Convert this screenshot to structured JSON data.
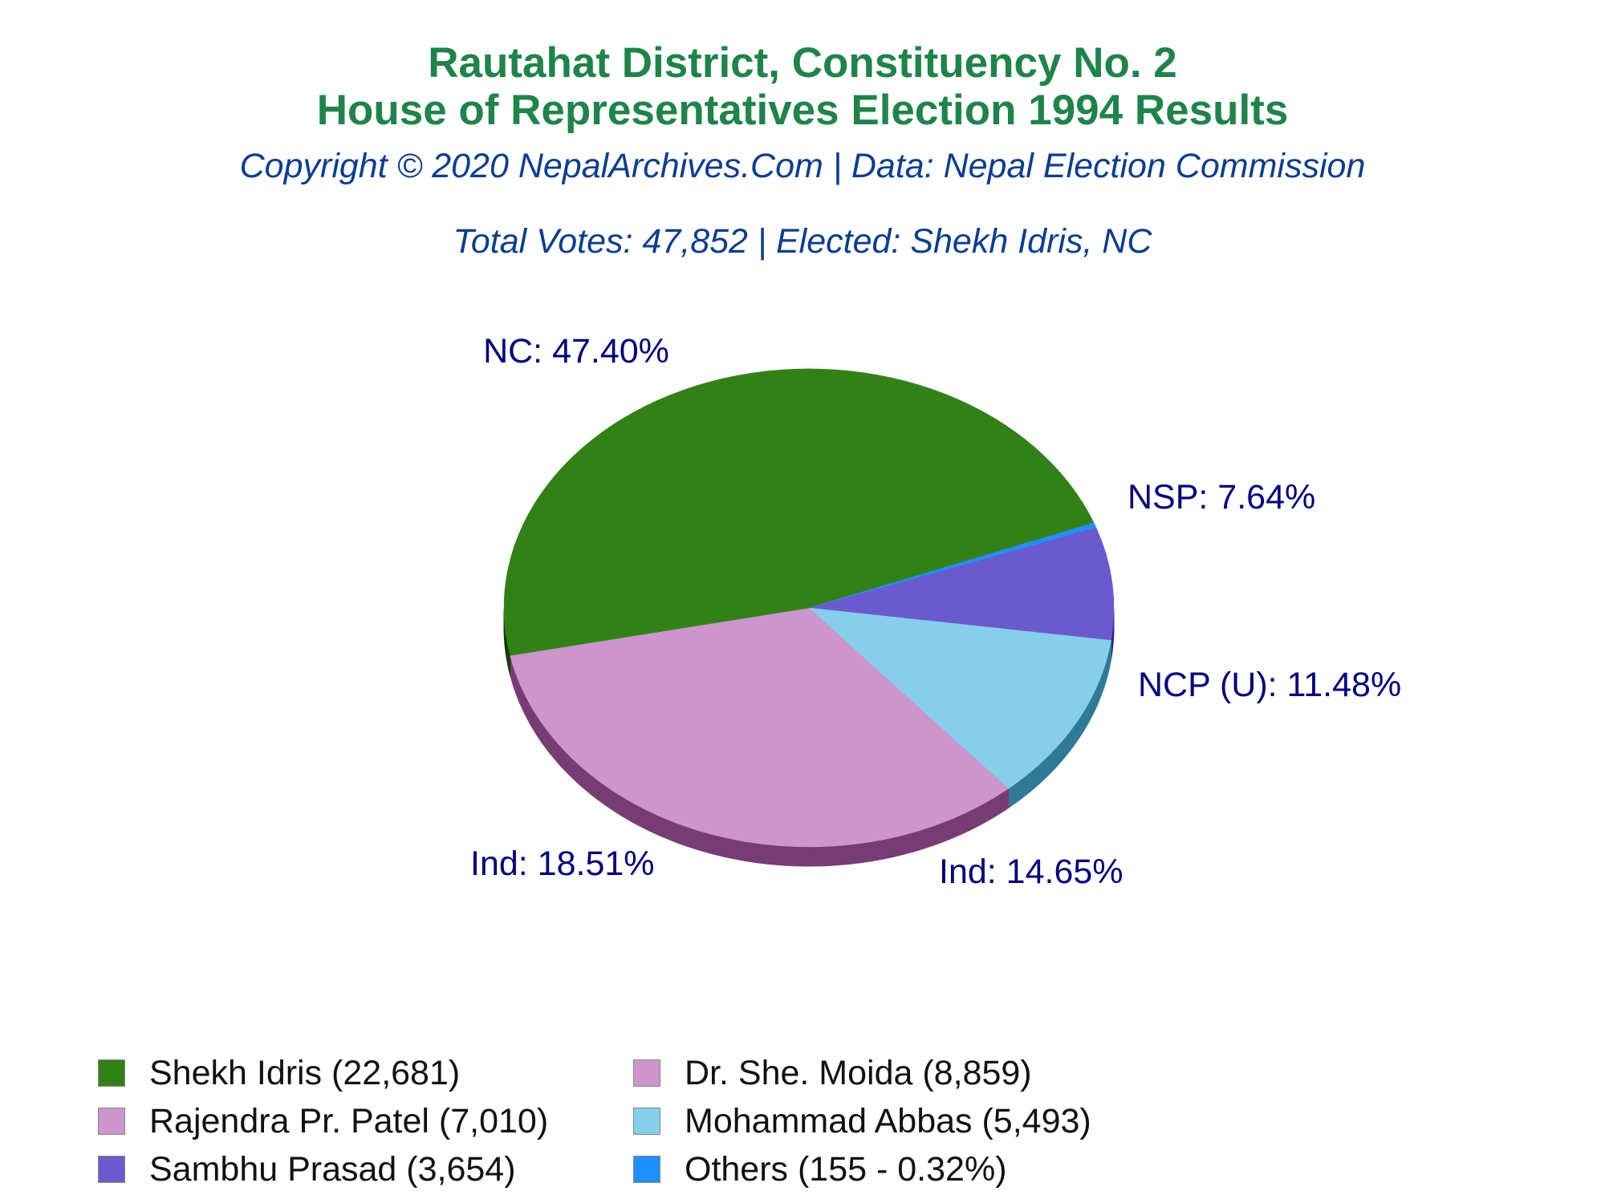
{
  "header": {
    "title_line1": "Rautahat District, Constituency No. 2",
    "title_line2": "House of Representatives Election 1994 Results",
    "copyright": "Copyright © 2020 NepalArchives.Com | Data: Nepal Election Commission",
    "summary": "Total Votes: 47,852 | Elected: Shekh Idris, NC"
  },
  "chart_data": {
    "type": "pie",
    "title": "Rautahat District, Constituency No. 2 House of Representatives Election 1994 Results",
    "total_votes": 47852,
    "slices": [
      {
        "candidate": "Shekh Idris",
        "party_label": "NC: 47.40%",
        "votes": 22681,
        "percent": 47.4,
        "color": "#328117",
        "side_color": "#143c05"
      },
      {
        "candidate": "Dr. She. Moida",
        "party_label": "Ind: 18.51%",
        "votes": 8859,
        "percent": 18.51,
        "color": "#cc95cc",
        "side_color": "#783c74"
      },
      {
        "candidate": "Rajendra Pr. Patel",
        "party_label": "Ind: 14.65%",
        "votes": 7010,
        "percent": 14.65,
        "color": "#cc95cc",
        "side_color": "#783c74"
      },
      {
        "candidate": "Mohammad Abbas",
        "party_label": "NCP (U): 11.48%",
        "votes": 5493,
        "percent": 11.48,
        "color": "#87ceeb",
        "side_color": "#2f7a97"
      },
      {
        "candidate": "Sambhu Prasad",
        "party_label": "NSP: 7.64%",
        "votes": 3654,
        "percent": 7.64,
        "color": "#6a5acd",
        "side_color": "#2f2680"
      },
      {
        "candidate": "Others",
        "party_label": "",
        "votes": 155,
        "percent": 0.32,
        "color": "#1e90ff",
        "side_color": "#0b4e96"
      }
    ],
    "legend_placement": "bottom"
  },
  "legend": {
    "items": [
      {
        "label": "Shekh Idris (22,681)",
        "color": "#328117"
      },
      {
        "label": "Dr. She. Moida (8,859)",
        "color": "#cc95cc"
      },
      {
        "label": "Rajendra Pr. Patel (7,010)",
        "color": "#cc95cc"
      },
      {
        "label": "Mohammad Abbas (5,493)",
        "color": "#87ceeb"
      },
      {
        "label": "Sambhu Prasad (3,654)",
        "color": "#6a5acd"
      },
      {
        "label": "Others (155 - 0.32%)",
        "color": "#1e90ff"
      }
    ]
  }
}
